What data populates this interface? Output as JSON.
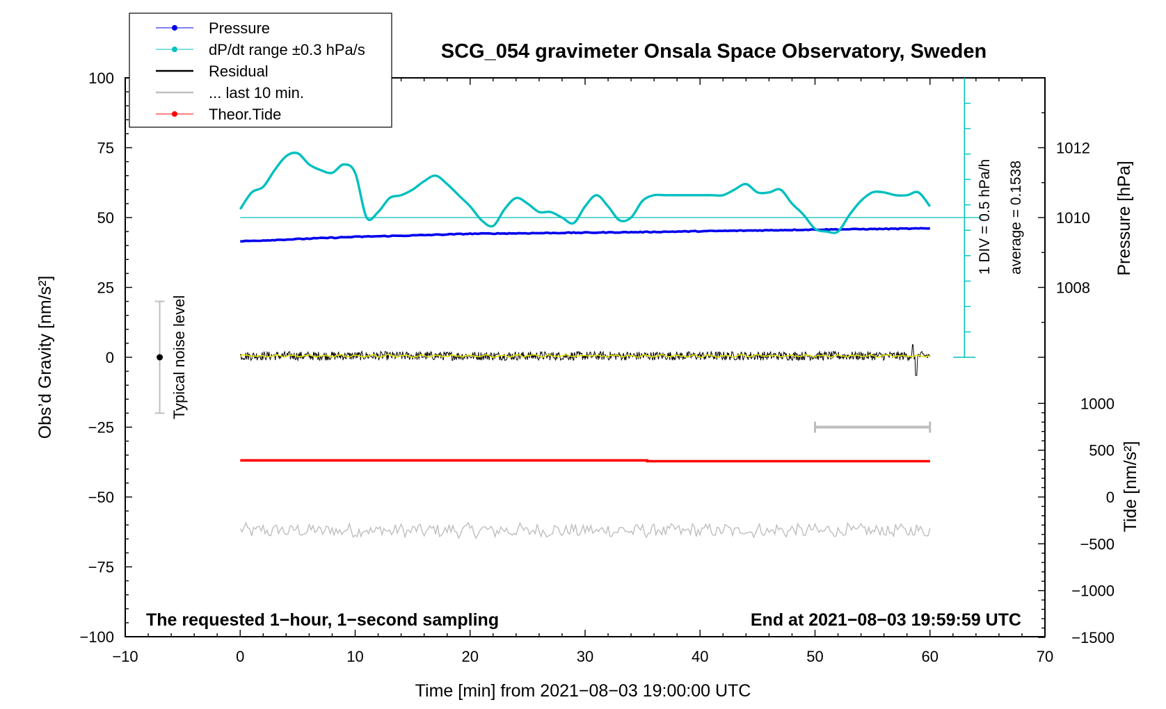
{
  "chart_data": {
    "type": "line",
    "title": "SCG_054 gravimeter Onsala Space Observatory, Sweden",
    "xlabel": "Time [min] from 2021−08−03 19:00:00 UTC",
    "ylabel_left": "Obs’d Gravity [nm/s²]",
    "ylabel_right_pressure": "Pressure [hPa]",
    "ylabel_right_tide": "Tide [nm/s²]",
    "xlim": [
      -10,
      70
    ],
    "ylim": [
      -100,
      100
    ],
    "x_ticks": [
      "−10",
      "0",
      "10",
      "20",
      "30",
      "40",
      "50",
      "60",
      "70"
    ],
    "y_ticks": [
      "100",
      "75",
      "50",
      "25",
      "0",
      "−25",
      "−50",
      "−75",
      "−100"
    ],
    "pressure_ticks": [
      "1012",
      "1010",
      "1008"
    ],
    "pressure_tick_values": [
      1012,
      1010,
      1008
    ],
    "pressure_mapping": {
      "ref_hpa": 1010,
      "ref_y": 50,
      "y_per_hpa": 12.5
    },
    "tide_ticks": [
      "1000",
      "500",
      "0",
      "−500",
      "−1000",
      "−1500"
    ],
    "tide_tick_values": [
      1000,
      500,
      0,
      -500,
      -1000,
      -1500
    ],
    "tide_mapping": {
      "ref_tide": 0,
      "ref_y": -50,
      "y_per_unit": 0.0335
    },
    "legend": [
      {
        "label": "Pressure",
        "color": "#0000ee",
        "marker": true
      },
      {
        "label": "dP/dt range ±0.3 hPa/s",
        "color": "#00bfbf",
        "marker": true
      },
      {
        "label": "Residual",
        "color": "#000000",
        "marker": false
      },
      {
        "label": "... last 10 min.",
        "color": "#bebebe",
        "marker": false
      },
      {
        "label": "Theor.Tide",
        "color": "#ff0000",
        "marker": true
      }
    ],
    "annotations": {
      "bottom_left": "The requested 1−hour, 1−second sampling",
      "bottom_right": "End at 2021−08−03 19:59:59 UTC",
      "noise_label": "Typical noise level",
      "div_label": "1 DIV = 0.5 hPa/h",
      "average_label": "average = 0.1538"
    },
    "noise_bar": {
      "x": -7,
      "y_center": 0,
      "y_low": -20,
      "y_high": 20
    },
    "dpdt_scale_bar": {
      "x": 63,
      "y_base": 0,
      "y_top": 100,
      "divisions": 11
    },
    "dpdt_baseline_y": 50,
    "last10_range": {
      "x_start": 50,
      "x_end": 60,
      "y": -25
    },
    "series": [
      {
        "name": "Pressure",
        "color": "#0000ee",
        "x": [
          0,
          5,
          10,
          15,
          20,
          25,
          30,
          35,
          40,
          45,
          50,
          55,
          60
        ],
        "y": [
          41.5,
          42.3,
          43.1,
          43.6,
          44.2,
          44.4,
          44.6,
          44.8,
          45.1,
          45.4,
          45.7,
          45.9,
          46.1
        ]
      },
      {
        "name": "dP/dt",
        "color": "#00bfbf",
        "x": [
          0,
          1,
          2,
          3,
          4,
          5,
          6,
          7,
          8,
          9,
          10,
          11,
          12,
          13,
          14,
          15,
          16,
          17,
          18,
          19,
          20,
          21,
          22,
          23,
          24,
          25,
          26,
          27,
          28,
          29,
          30,
          31,
          32,
          33,
          34,
          35,
          36,
          37,
          38,
          39,
          40,
          41,
          42,
          43,
          44,
          45,
          46,
          47,
          48,
          49,
          50,
          51,
          52,
          53,
          54,
          55,
          56,
          57,
          58,
          59,
          60
        ],
        "y": [
          53,
          59,
          61,
          67,
          72,
          73,
          69,
          67,
          66,
          69,
          66,
          50,
          52,
          57,
          58,
          60,
          63,
          65,
          62,
          58,
          54,
          49,
          47,
          53,
          57,
          55,
          52,
          52,
          50,
          48,
          54,
          58,
          54,
          49,
          50,
          56,
          58,
          58,
          58,
          58,
          58,
          58,
          58,
          60,
          62,
          59,
          59,
          60,
          55,
          51,
          46,
          45,
          45,
          51,
          56,
          59,
          59,
          58,
          58,
          59,
          54
        ]
      },
      {
        "name": "Theor.Tide",
        "color": "#ff0000",
        "x": [
          0,
          35.4,
          35.4,
          60
        ],
        "y": [
          -36.9,
          -36.9,
          -37.2,
          -37.2
        ]
      }
    ],
    "residual": {
      "x_start": 0,
      "x_end": 60,
      "center": 0.5,
      "amplitude": 1.6,
      "spike_x": 58.8,
      "spike_low": -6.5,
      "spike_high": 4.5
    },
    "residual_smooth": {
      "color": "#e6e600",
      "amplitude": 0.5
    },
    "last10": {
      "x_start": 0,
      "x_end": 60,
      "center": -62,
      "amplitude": 2.2,
      "color": "#bebebe"
    }
  }
}
